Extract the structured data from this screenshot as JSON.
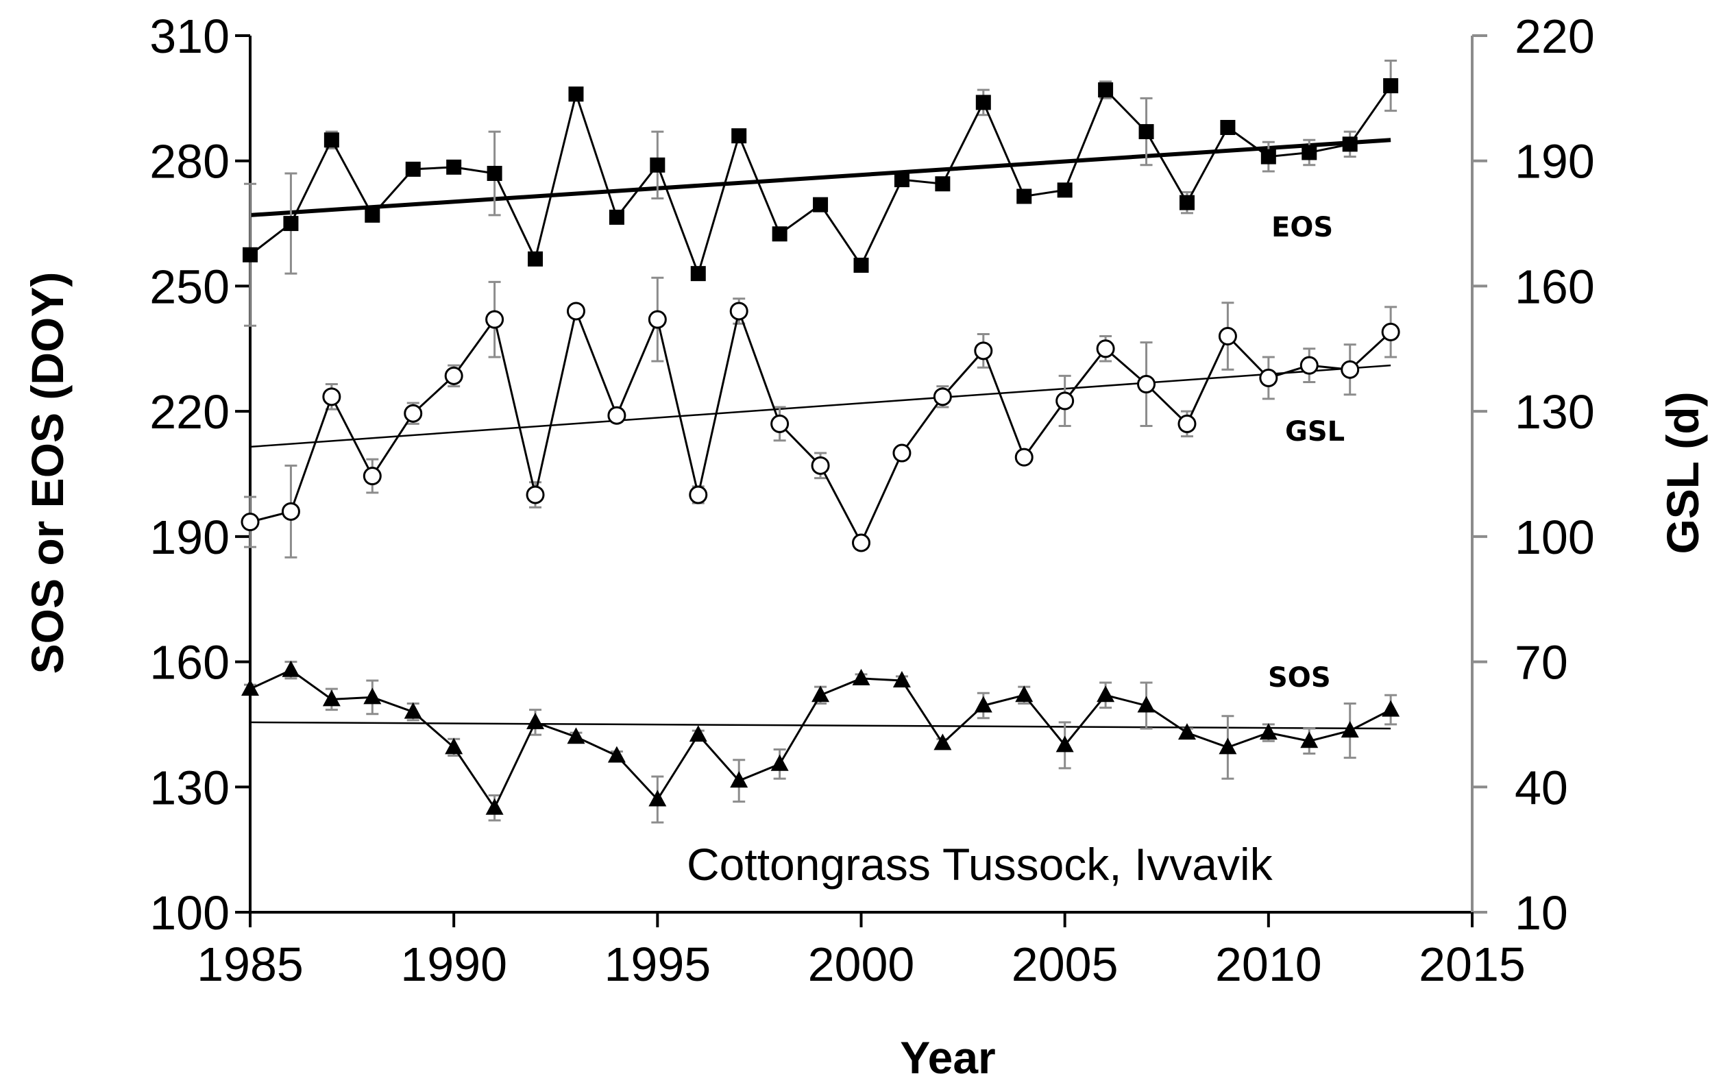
{
  "chart_data": {
    "type": "line",
    "annotation": "Cottongrass Tussock, Ivvavik",
    "xlabel": "Year",
    "ylabel": "SOS or EOS (DOY)",
    "y2label": "GSL (d)",
    "xlim": [
      1985,
      2015
    ],
    "xticks": [
      1985,
      1990,
      1995,
      2000,
      2005,
      2010,
      2015
    ],
    "ylim": [
      100,
      310
    ],
    "yticks": [
      100,
      130,
      160,
      190,
      220,
      250,
      280,
      310
    ],
    "y2lim": [
      10,
      220
    ],
    "y2ticks": [
      10,
      40,
      70,
      100,
      130,
      160,
      190,
      220
    ],
    "grid": false,
    "x": [
      1985,
      1986,
      1987,
      1988,
      1989,
      1990,
      1991,
      1992,
      1993,
      1994,
      1995,
      1996,
      1997,
      1998,
      1999,
      2000,
      2001,
      2002,
      2003,
      2004,
      2005,
      2006,
      2007,
      2008,
      2009,
      2010,
      2011,
      2012,
      2013
    ],
    "series": [
      {
        "name": "EOS",
        "label": "EOS",
        "axis": "left",
        "marker": "square",
        "values": [
          257.5,
          265,
          285,
          267,
          278,
          278.5,
          277,
          256.5,
          296,
          266.5,
          279,
          253,
          286,
          262.5,
          269.5,
          255,
          275.5,
          274.5,
          294,
          271.5,
          273,
          297,
          287,
          270,
          288,
          281,
          282,
          284,
          298
        ],
        "errors": [
          17,
          12,
          2,
          1.5,
          1,
          1,
          10,
          1,
          1,
          1,
          8,
          1,
          1,
          1.5,
          1,
          1,
          1,
          1.5,
          3,
          1,
          1,
          2,
          8,
          2.5,
          1,
          3.5,
          3,
          3,
          6
        ],
        "trend": [
          267,
          285
        ]
      },
      {
        "name": "GSL",
        "label": "GSL",
        "axis": "right",
        "marker": "open-circle",
        "values": [
          103.5,
          106,
          133.5,
          114.5,
          129.5,
          138.5,
          152,
          110,
          154,
          129,
          152,
          110,
          154,
          127,
          117,
          98.5,
          120,
          133.5,
          144.5,
          119,
          132.5,
          145,
          136.5,
          127,
          148,
          138,
          141,
          140,
          149
        ],
        "errors": [
          6,
          11,
          3,
          4,
          2.5,
          2.5,
          9,
          3,
          1,
          1.5,
          10,
          2,
          3,
          4,
          3,
          1.5,
          1,
          2.5,
          4,
          1,
          6,
          3,
          10,
          3,
          8,
          5,
          4,
          6,
          6
        ],
        "trend": [
          121.5,
          141
        ]
      },
      {
        "name": "SOS",
        "label": "SOS",
        "axis": "left",
        "marker": "triangle",
        "values": [
          153.5,
          158,
          151,
          151.5,
          148,
          139.5,
          125,
          145.5,
          142,
          137.5,
          127,
          142.5,
          131.5,
          135.5,
          152,
          156,
          155.5,
          140.5,
          149.5,
          152,
          140,
          152,
          149.5,
          143,
          139.5,
          143,
          141,
          143.5,
          148.5
        ],
        "errors": [
          1,
          2,
          2.5,
          4,
          2,
          2,
          3,
          3,
          1,
          1,
          5.5,
          1,
          5,
          3.5,
          2,
          1,
          1,
          1,
          3,
          2,
          5.5,
          3,
          5.5,
          1,
          7.5,
          2,
          3,
          6.5,
          3.5
        ],
        "trend": [
          145.5,
          144
        ]
      }
    ]
  }
}
